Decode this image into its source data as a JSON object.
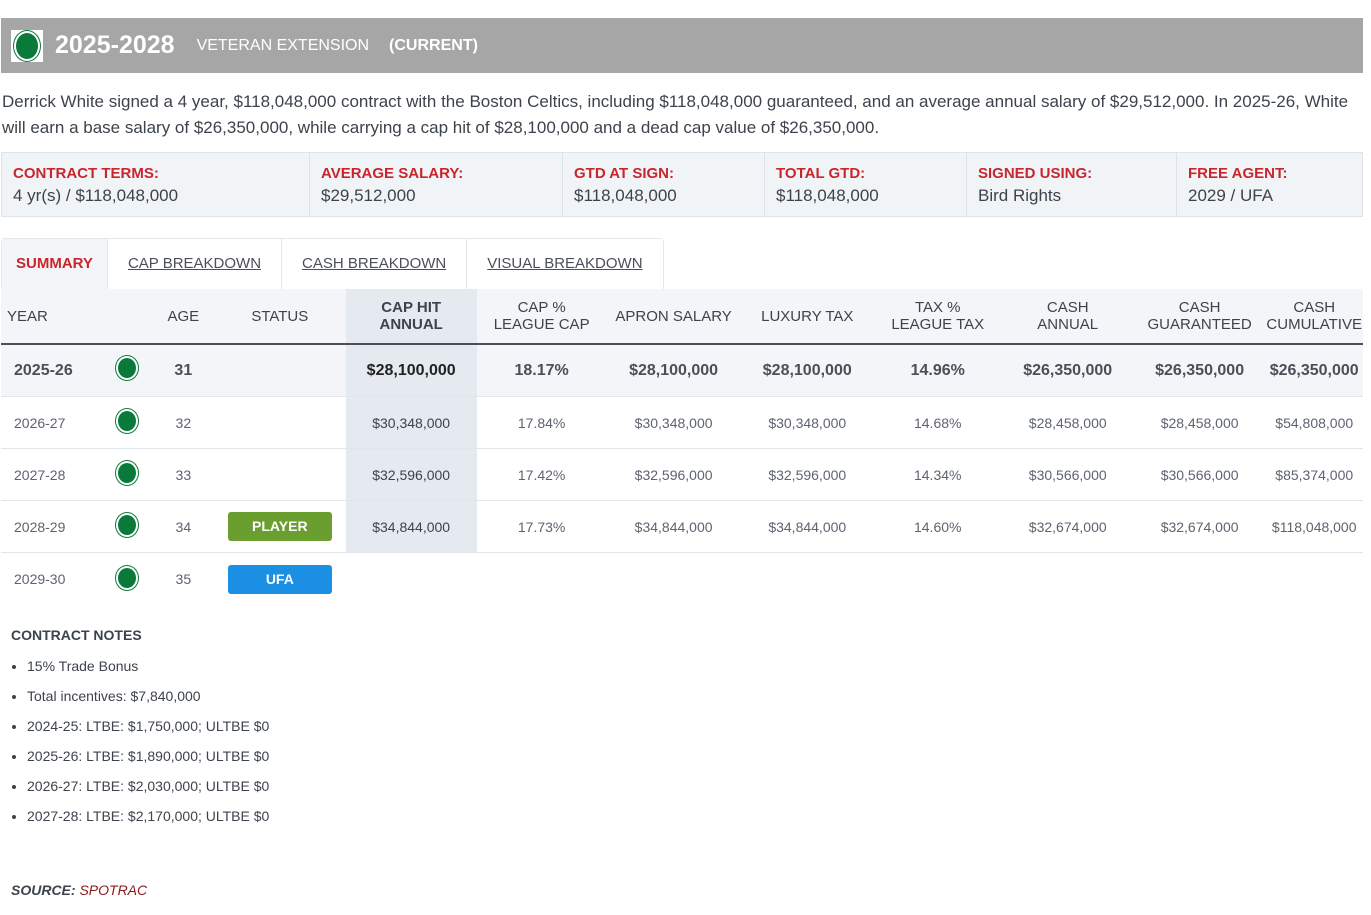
{
  "header": {
    "years": "2025-2028",
    "type": "VETERAN EXTENSION",
    "status": "(CURRENT)",
    "logo_icon": "celtics-logo"
  },
  "description": "Derrick White signed a 4 year, $118,048,000 contract with the Boston Celtics, including $118,048,000 guaranteed, and an average annual salary of $29,512,000. In 2025-26, White will earn a base salary of $26,350,000, while carrying a cap hit of $28,100,000 and a dead cap value of $26,350,000.",
  "terms": [
    {
      "label": "CONTRACT TERMS:",
      "value": "4 yr(s) / $118,048,000"
    },
    {
      "label": "AVERAGE SALARY:",
      "value": "$29,512,000"
    },
    {
      "label": "GTD AT SIGN:",
      "value": "$118,048,000"
    },
    {
      "label": "TOTAL GTD:",
      "value": "$118,048,000"
    },
    {
      "label": "SIGNED USING:",
      "value": "Bird Rights"
    },
    {
      "label": "FREE AGENT:",
      "value": "2029 / UFA"
    }
  ],
  "tabs": [
    "SUMMARY",
    "CAP BREAKDOWN",
    "CASH BREAKDOWN",
    "VISUAL BREAKDOWN"
  ],
  "columns": {
    "year": "YEAR",
    "age": "AGE",
    "status": "STATUS",
    "cap_hit_1": "CAP HIT",
    "cap_hit_2": "ANNUAL",
    "cap_pct_1": "CAP %",
    "cap_pct_2": "LEAGUE CAP",
    "apron": "APRON SALARY",
    "lux": "LUXURY TAX",
    "tax_pct_1": "TAX %",
    "tax_pct_2": "LEAGUE TAX",
    "cash_1": "CASH",
    "cash_2": "ANNUAL",
    "gtd_1": "CASH",
    "gtd_2": "GUARANTEED",
    "cum_1": "CASH",
    "cum_2": "CUMULATIVE"
  },
  "rows": [
    {
      "year": "2025-26",
      "age": "31",
      "status": "",
      "cap_hit": "$28,100,000",
      "cap_pct": "18.17%",
      "apron": "$28,100,000",
      "lux": "$28,100,000",
      "tax_pct": "14.96%",
      "cash": "$26,350,000",
      "gtd": "$26,350,000",
      "cum": "$26,350,000",
      "current": true
    },
    {
      "year": "2026-27",
      "age": "32",
      "status": "",
      "cap_hit": "$30,348,000",
      "cap_pct": "17.84%",
      "apron": "$30,348,000",
      "lux": "$30,348,000",
      "tax_pct": "14.68%",
      "cash": "$28,458,000",
      "gtd": "$28,458,000",
      "cum": "$54,808,000"
    },
    {
      "year": "2027-28",
      "age": "33",
      "status": "",
      "cap_hit": "$32,596,000",
      "cap_pct": "17.42%",
      "apron": "$32,596,000",
      "lux": "$32,596,000",
      "tax_pct": "14.34%",
      "cash": "$30,566,000",
      "gtd": "$30,566,000",
      "cum": "$85,374,000"
    },
    {
      "year": "2028-29",
      "age": "34",
      "status": "PLAYER",
      "status_color": "#6a9e2f",
      "cap_hit": "$34,844,000",
      "cap_pct": "17.73%",
      "apron": "$34,844,000",
      "lux": "$34,844,000",
      "tax_pct": "14.60%",
      "cash": "$32,674,000",
      "gtd": "$32,674,000",
      "cum": "$118,048,000"
    },
    {
      "year": "2029-30",
      "age": "35",
      "status": "UFA",
      "status_color": "#1a8fe3"
    }
  ],
  "notes": {
    "title": "CONTRACT NOTES",
    "items": [
      "15% Trade Bonus",
      "Total incentives: $7,840,000",
      "2024-25: LTBE: $1,750,000; ULTBE $0",
      "2025-26: LTBE: $1,890,000; ULTBE $0",
      "2026-27: LTBE: $2,030,000; ULTBE $0",
      "2027-28: LTBE: $2,170,000; ULTBE $0"
    ]
  },
  "source": {
    "label": "SOURCE:",
    "value": "SPOTRAC"
  }
}
